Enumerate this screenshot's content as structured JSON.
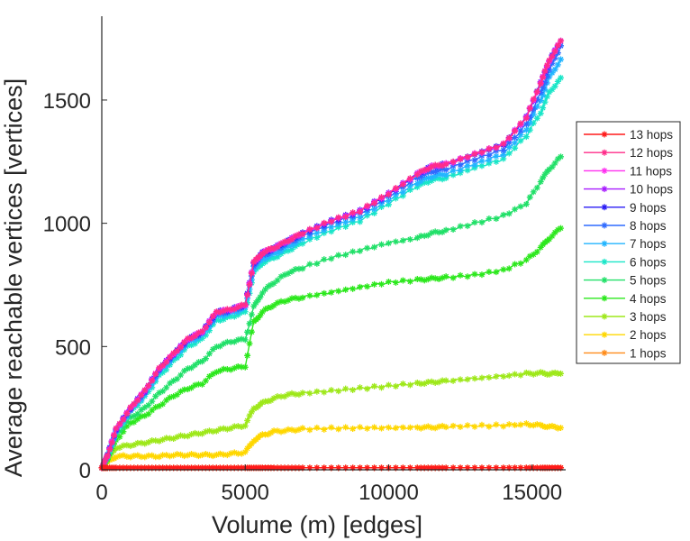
{
  "chart_data": {
    "type": "line",
    "title": "",
    "xlabel": "Volume (m) [edges]",
    "ylabel": "Average reachable vertices [vertices]",
    "xlim": [
      0,
      16800
    ],
    "ylim": [
      0,
      1840
    ],
    "xticks": [
      0,
      5000,
      10000,
      15000
    ],
    "xtick_labels": [
      "0",
      "5000",
      "10000",
      "15000"
    ],
    "yticks": [
      0,
      500,
      1000,
      1500
    ],
    "ytick_labels": [
      "0",
      "500",
      "1000",
      "1500"
    ],
    "grid": false,
    "legend_position": "right",
    "x": [
      0,
      200,
      500,
      1000,
      1500,
      2000,
      2500,
      3000,
      3500,
      4000,
      4500,
      5000,
      5300,
      5600,
      6000,
      6500,
      7000,
      8000,
      9000,
      10000,
      11000,
      11500,
      12000,
      13000,
      14000,
      14800,
      15300,
      15600,
      16000
    ],
    "series": [
      {
        "name": "13 hops",
        "color": "#ff1a1a",
        "values": [
          8,
          8,
          8,
          8,
          8,
          8,
          8,
          8,
          8,
          8,
          8,
          8,
          8,
          8,
          8,
          8,
          8,
          8,
          8,
          8,
          8,
          8,
          8,
          8,
          8,
          8,
          8,
          8,
          8
        ]
      },
      {
        "name": "12 hops",
        "color": "#ff2d8a",
        "values": [
          8,
          60,
          165,
          250,
          320,
          410,
          470,
          530,
          560,
          640,
          650,
          670,
          840,
          880,
          900,
          930,
          960,
          1010,
          1050,
          1120,
          1200,
          1230,
          1240,
          1280,
          1320,
          1430,
          1570,
          1660,
          1740
        ]
      },
      {
        "name": "11 hops",
        "color": "#ff2ff0",
        "values": [
          8,
          60,
          165,
          250,
          320,
          410,
          470,
          530,
          560,
          640,
          650,
          670,
          840,
          880,
          900,
          930,
          960,
          1010,
          1050,
          1120,
          1200,
          1230,
          1240,
          1280,
          1320,
          1430,
          1570,
          1660,
          1740
        ]
      },
      {
        "name": "10 hops",
        "color": "#a81cff",
        "values": [
          8,
          60,
          165,
          250,
          320,
          410,
          470,
          530,
          560,
          640,
          650,
          670,
          840,
          880,
          900,
          930,
          960,
          1010,
          1050,
          1120,
          1200,
          1230,
          1240,
          1280,
          1320,
          1430,
          1570,
          1660,
          1740
        ]
      },
      {
        "name": "9 hops",
        "color": "#2a1cf5",
        "values": [
          8,
          60,
          165,
          250,
          320,
          410,
          470,
          530,
          560,
          640,
          650,
          670,
          840,
          880,
          900,
          930,
          960,
          1010,
          1050,
          1120,
          1200,
          1230,
          1240,
          1280,
          1320,
          1430,
          1570,
          1660,
          1740
        ]
      },
      {
        "name": "8 hops",
        "color": "#2f6bff",
        "values": [
          8,
          58,
          160,
          245,
          315,
          405,
          465,
          525,
          555,
          630,
          645,
          665,
          830,
          870,
          890,
          920,
          950,
          1000,
          1040,
          1110,
          1185,
          1210,
          1220,
          1260,
          1300,
          1400,
          1530,
          1620,
          1720
        ]
      },
      {
        "name": "7 hops",
        "color": "#22b5ff",
        "values": [
          8,
          56,
          155,
          240,
          305,
          395,
          455,
          515,
          545,
          620,
          635,
          655,
          815,
          855,
          875,
          905,
          935,
          985,
          1025,
          1095,
          1165,
          1190,
          1200,
          1240,
          1280,
          1380,
          1500,
          1590,
          1665
        ]
      },
      {
        "name": "6 hops",
        "color": "#19e6c8",
        "values": [
          8,
          55,
          150,
          235,
          295,
          380,
          440,
          500,
          530,
          605,
          620,
          640,
          800,
          840,
          860,
          890,
          920,
          970,
          1010,
          1080,
          1150,
          1175,
          1185,
          1225,
          1260,
          1355,
          1450,
          1530,
          1590
        ]
      },
      {
        "name": "5 hops",
        "color": "#21e068",
        "values": [
          8,
          50,
          140,
          210,
          250,
          310,
          360,
          410,
          440,
          500,
          520,
          530,
          660,
          720,
          760,
          800,
          820,
          860,
          890,
          920,
          940,
          960,
          970,
          1000,
          1030,
          1080,
          1170,
          1220,
          1270
        ]
      },
      {
        "name": "4 hops",
        "color": "#2ce81d",
        "values": [
          8,
          45,
          120,
          190,
          220,
          260,
          300,
          330,
          350,
          400,
          410,
          420,
          600,
          640,
          670,
          690,
          700,
          720,
          740,
          760,
          770,
          775,
          780,
          790,
          810,
          850,
          900,
          940,
          980
        ]
      },
      {
        "name": "3 hops",
        "color": "#9ee81a",
        "values": [
          8,
          40,
          90,
          100,
          110,
          120,
          130,
          140,
          150,
          160,
          170,
          180,
          250,
          270,
          290,
          305,
          310,
          320,
          330,
          340,
          350,
          355,
          360,
          370,
          380,
          390,
          392,
          390,
          390
        ]
      },
      {
        "name": "2 hops",
        "color": "#ffd700",
        "values": [
          8,
          30,
          55,
          55,
          55,
          55,
          60,
          60,
          60,
          60,
          65,
          70,
          120,
          140,
          155,
          160,
          165,
          168,
          170,
          170,
          172,
          172,
          175,
          178,
          180,
          185,
          180,
          175,
          170
        ]
      },
      {
        "name": "1 hops",
        "color": "#ff8c1a",
        "values": [
          8,
          8,
          8,
          8,
          8,
          8,
          8,
          8,
          8,
          8,
          8,
          8,
          8,
          8,
          8,
          8,
          8,
          8,
          8,
          8,
          8,
          8,
          8,
          8,
          8,
          8,
          8,
          8,
          8
        ]
      }
    ]
  }
}
